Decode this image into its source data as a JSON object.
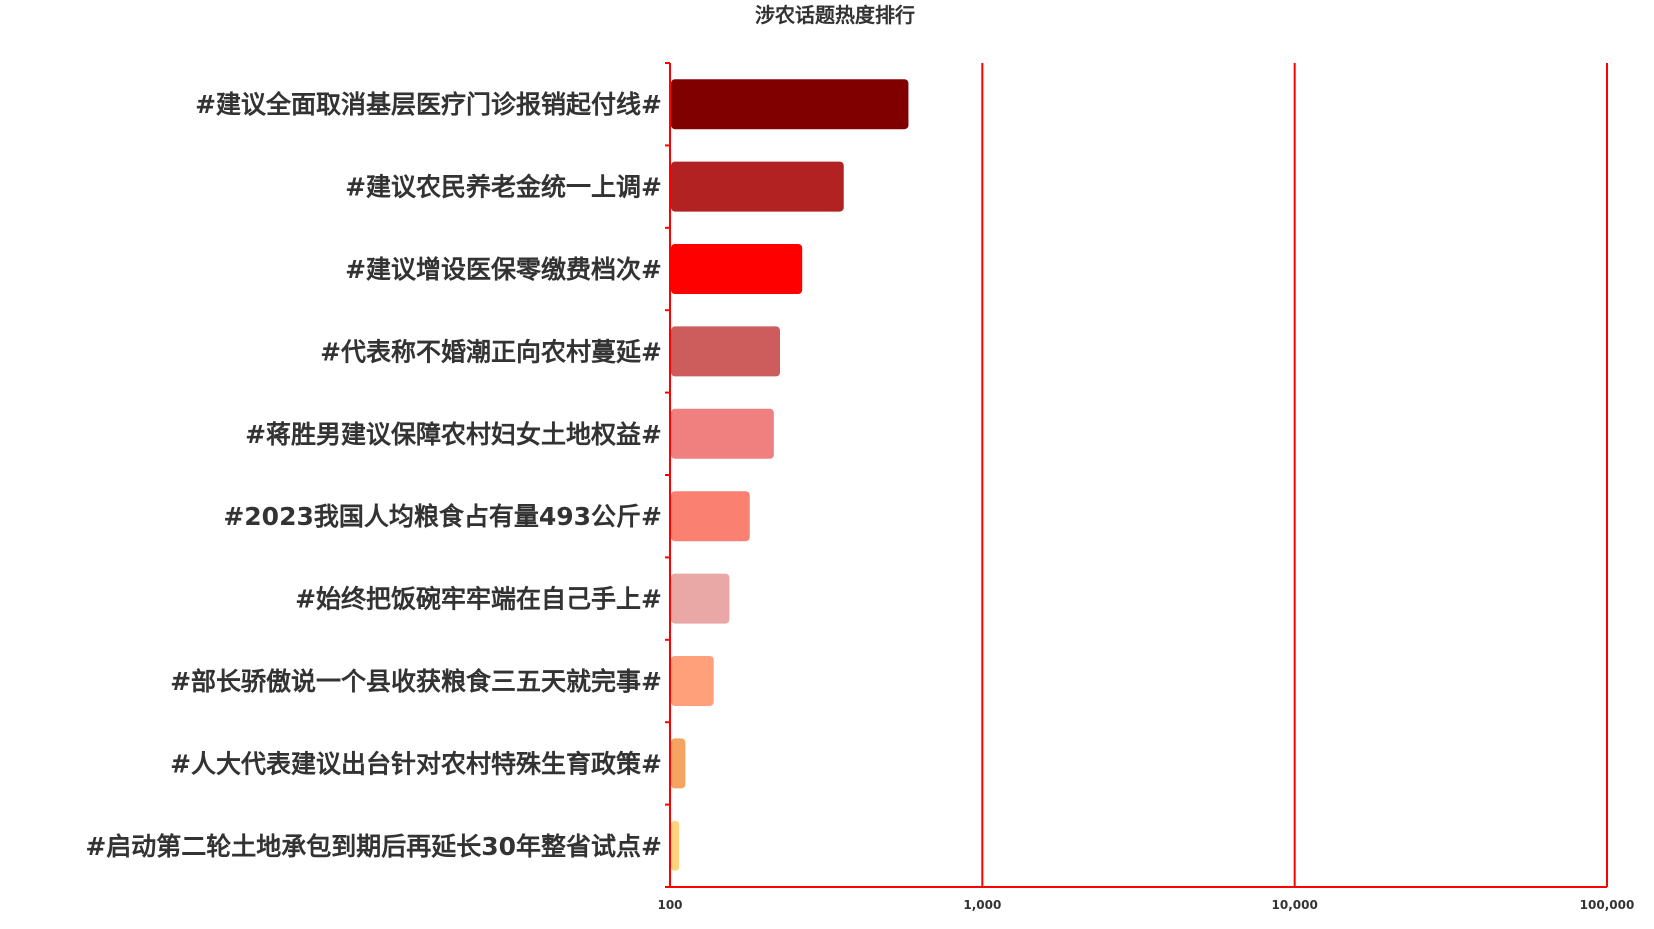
{
  "chart_data": {
    "type": "bar",
    "orientation": "horizontal",
    "title": "涉农话题热度排行",
    "xlabel": "",
    "ylabel": "",
    "x_scale": "log",
    "xlim": [
      100,
      100000
    ],
    "x_ticks": [
      100,
      1000,
      10000,
      100000
    ],
    "x_tick_labels": [
      "100",
      "1,000",
      "10,000",
      "100,000"
    ],
    "grid": "vertical",
    "legend": "none",
    "categories": [
      "#建议全面取消基层医疗门诊报销起付线#",
      "#建议农民养老金统一上调#",
      "#建议增设医保零缴费档次#",
      "#代表称不婚潮正向农村蔓延#",
      "#蒋胜男建议保障农村妇女土地权益#",
      "#2023我国人均粮食占有量493公斤#",
      "#始终把饭碗牢牢端在自己手上#",
      "#部长骄傲说一个县收获粮食三五天就完事#",
      "#人大代表建议出台针对农村特殊生育政策#",
      "#启动第二轮土地承包到期后再延长30年整省试点#"
    ],
    "values": [
      580,
      360,
      265,
      225,
      215,
      180,
      155,
      138,
      112,
      107
    ],
    "colors": [
      "#800000",
      "#b22222",
      "#ff0000",
      "#cd5c5c",
      "#f08080",
      "#fa8072",
      "#e9a8a6",
      "#ffa07a",
      "#f4a460",
      "#ffd47f"
    ],
    "axis_color": "#ff0000"
  }
}
